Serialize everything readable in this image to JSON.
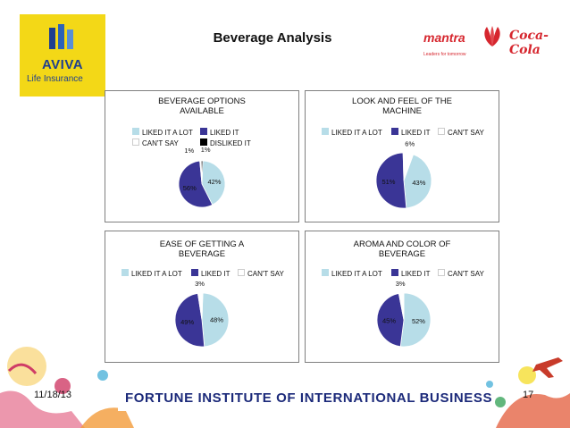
{
  "header": {
    "title": "Beverage Analysis",
    "aviva_name": "AVIVA",
    "aviva_sub": "Life Insurance",
    "mantra_name": "mantra",
    "mantra_tagline": "Leaders for tomorrow",
    "coke_name": "Coca-Cola"
  },
  "colors": {
    "liked_a_lot": "#b7dde8",
    "liked_it": "#3a3596",
    "cant_say": "#ffffff",
    "disliked_it": "#000000",
    "aviva_yellow": "#f3d817",
    "brand_red": "#d6262e",
    "banner_navy": "#1c2a7a"
  },
  "chart_data": [
    {
      "type": "pie",
      "title": "BEVERAGE OPTIONS AVAILABLE",
      "categories": [
        "LIKED IT A LOT",
        "LIKED IT",
        "CAN'T SAY",
        "DISLIKED IT"
      ],
      "values": [
        42,
        56,
        1,
        1
      ],
      "labels": [
        "42%",
        "56%",
        "1%",
        "1%"
      ],
      "legend": "top"
    },
    {
      "type": "pie",
      "title": "LOOK AND FEEL OF THE MACHINE",
      "categories": [
        "LIKED IT A LOT",
        "LIKED IT",
        "CAN'T SAY"
      ],
      "values": [
        43,
        51,
        6
      ],
      "labels": [
        "43%",
        "51%",
        "6%"
      ],
      "legend": "top"
    },
    {
      "type": "pie",
      "title": "EASE OF GETTING A BEVERAGE",
      "categories": [
        "LIKED IT A LOT",
        "LIKED IT",
        "CAN'T SAY"
      ],
      "values": [
        48,
        49,
        3
      ],
      "labels": [
        "48%",
        "49%",
        "3%"
      ],
      "legend": "top"
    },
    {
      "type": "pie",
      "title": "AROMA AND COLOR OF BEVERAGE",
      "categories": [
        "LIKED IT A LOT",
        "LIKED IT",
        "CAN'T SAY"
      ],
      "values": [
        52,
        45,
        3
      ],
      "labels": [
        "52%",
        "45%",
        "3%"
      ],
      "legend": "top"
    }
  ],
  "charts_text": [
    {
      "title_line1": "BEVERAGE OPTIONS",
      "title_line2": "AVAILABLE"
    },
    {
      "title_line1": "LOOK AND FEEL OF THE",
      "title_line2": "MACHINE"
    },
    {
      "title_line1": "EASE OF GETTING A",
      "title_line2": "BEVERAGE"
    },
    {
      "title_line1": "AROMA AND COLOR OF",
      "title_line2": "BEVERAGE"
    }
  ],
  "footer": {
    "date": "11/18/13",
    "banner": "FORTUNE INSTITUTE OF INTERNATIONAL BUSINESS",
    "page": "17"
  }
}
